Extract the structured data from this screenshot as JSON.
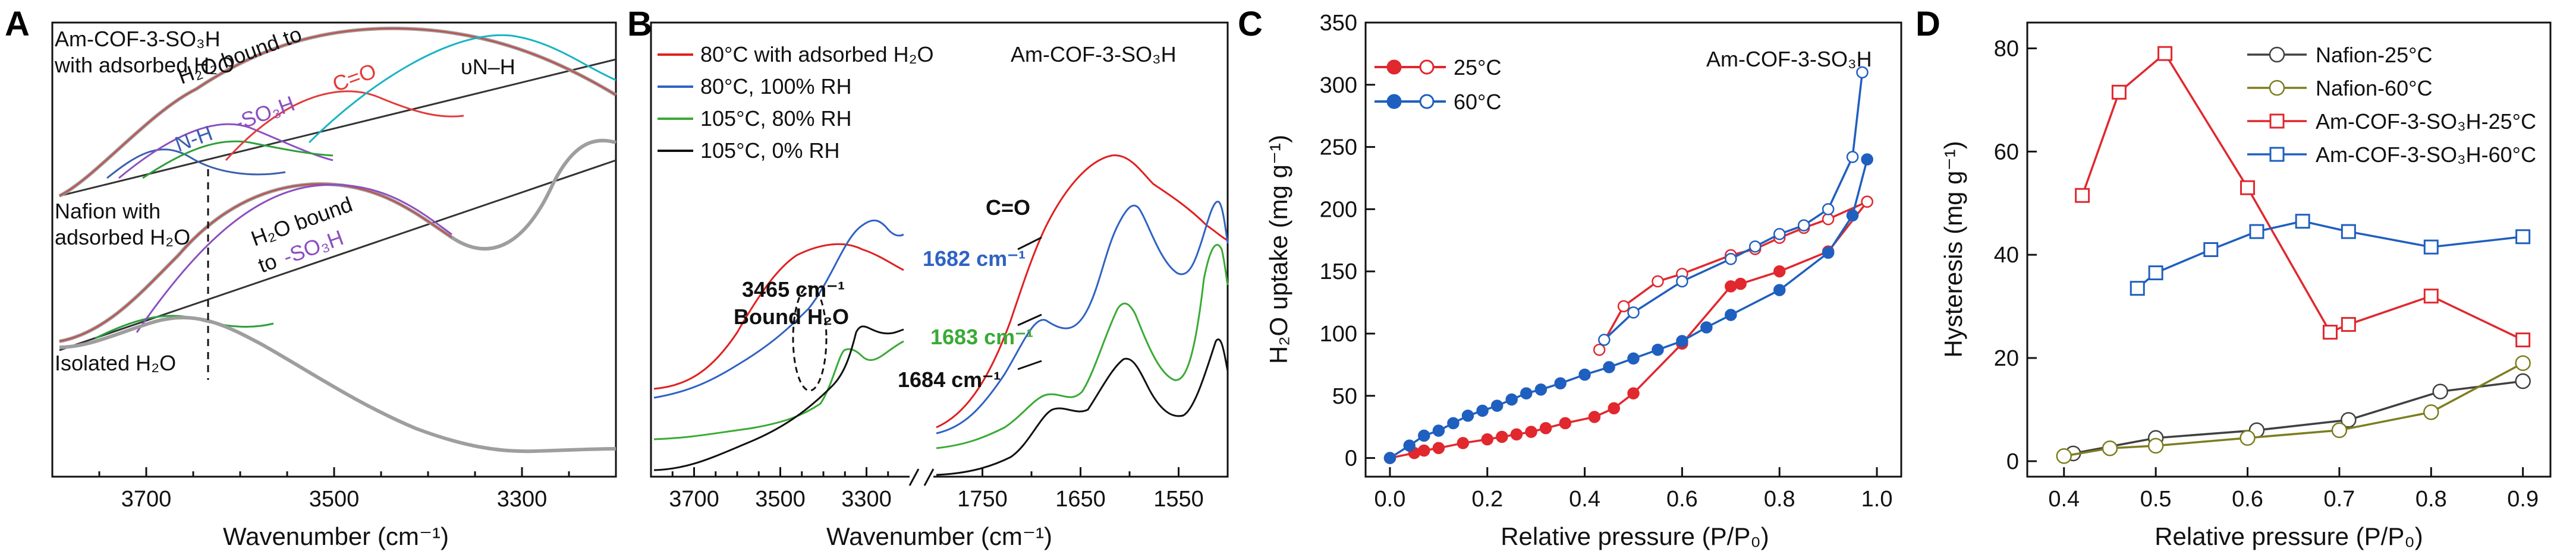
{
  "panels": {
    "A": {
      "letter": "A"
    },
    "B": {
      "letter": "B"
    },
    "C": {
      "letter": "C"
    },
    "D": {
      "letter": "D"
    }
  },
  "chart_data": [
    {
      "id": "A",
      "type": "line",
      "xlabel": "Wavenumber (cm⁻¹)",
      "ylabel": "",
      "xlim": [
        3800,
        3200
      ],
      "x_ticks": [
        3700,
        3500,
        3300
      ],
      "annotations": {
        "top_label_1": "Am-COF-3-SO₃H",
        "top_label_2": "with adsorbed H₂O",
        "top_bound_1": "H₂O bound to",
        "top_nh": "N-H",
        "top_so3h": "-SO₃H",
        "top_co": "C=O",
        "top_vnh": "υN–H",
        "mid_label_1": "Nafion with",
        "mid_label_2": "adsorbed H₂O",
        "mid_bound_1": "H₂O bound",
        "mid_bound_2": "to",
        "mid_so3h": "-SO₃H",
        "bottom_label": "Isolated H₂O"
      },
      "colors": {
        "measured": "#9e9e9e",
        "fit": "#c0504d",
        "nh": "#3a5fb0",
        "so3h": "#8b4fc1",
        "green": "#2e9e3a",
        "co": "#e23b3b",
        "vnh": "#18b4c3",
        "baseline": "#333333"
      }
    },
    {
      "id": "B",
      "type": "line",
      "xlabel": "Wavenumber (cm⁻¹)",
      "title": "Am-COF-3-SO₃H",
      "x_ticks_left": [
        3700,
        3500,
        3300
      ],
      "x_ticks_right": [
        1750,
        1650,
        1550
      ],
      "series": [
        {
          "name": "80°C with adsorbed H₂O",
          "color": "#e02020"
        },
        {
          "name": "80°C, 100% RH",
          "color": "#2f62c4"
        },
        {
          "name": "105°C, 80% RH",
          "color": "#3aaa35"
        },
        {
          "name": "105°C, 0% RH",
          "color": "#111111"
        }
      ],
      "annotations": {
        "bound_1": "3465 cm⁻¹",
        "bound_2": "Bound H₂O",
        "co": "C=O",
        "peak_blue": "1682 cm⁻¹",
        "peak_green": "1683 cm⁻¹",
        "peak_black": "1684 cm⁻¹"
      }
    },
    {
      "id": "C",
      "type": "line",
      "title": "Am-COF-3-SO₃H",
      "xlabel": "Relative pressure (P/P₀)",
      "ylabel": "H₂O uptake (mg g⁻¹)",
      "xlim": [
        -0.05,
        1.05
      ],
      "ylim": [
        -15,
        350
      ],
      "x_ticks": [
        "0.0",
        "0.2",
        "0.4",
        "0.6",
        "0.8",
        "1.0"
      ],
      "y_ticks": [
        "0",
        "50",
        "100",
        "150",
        "200",
        "250",
        "300",
        "350"
      ],
      "legend": [
        "25°C",
        "60°C"
      ],
      "legend_position": "top-left",
      "series": [
        {
          "name": "25°C",
          "branch": "adsorption",
          "color": "#e0282e",
          "filled": true,
          "x": [
            0.0,
            0.05,
            0.07,
            0.1,
            0.15,
            0.2,
            0.23,
            0.26,
            0.29,
            0.32,
            0.36,
            0.42,
            0.46,
            0.5,
            0.6,
            0.7,
            0.72,
            0.8,
            0.9,
            0.98
          ],
          "y": [
            0,
            4,
            6,
            8,
            12,
            15,
            17,
            19,
            21,
            24,
            28,
            33,
            40,
            52,
            92,
            138,
            140,
            150,
            166,
            206
          ]
        },
        {
          "name": "25°C",
          "branch": "desorption",
          "color": "#e0282e",
          "filled": false,
          "x": [
            0.98,
            0.9,
            0.85,
            0.8,
            0.75,
            0.7,
            0.6,
            0.55,
            0.48,
            0.43
          ],
          "y": [
            206,
            192,
            185,
            177,
            168,
            163,
            148,
            142,
            122,
            87
          ]
        },
        {
          "name": "60°C",
          "branch": "adsorption",
          "color": "#1f5fbf",
          "filled": true,
          "x": [
            0.0,
            0.04,
            0.07,
            0.1,
            0.13,
            0.16,
            0.19,
            0.22,
            0.25,
            0.28,
            0.31,
            0.35,
            0.4,
            0.45,
            0.5,
            0.55,
            0.6,
            0.65,
            0.7,
            0.8,
            0.9,
            0.95,
            0.98
          ],
          "y": [
            0,
            10,
            18,
            22,
            28,
            34,
            38,
            42,
            47,
            52,
            55,
            60,
            67,
            73,
            80,
            87,
            94,
            105,
            115,
            135,
            165,
            195,
            240
          ]
        },
        {
          "name": "60°C",
          "branch": "desorption",
          "color": "#1f5fbf",
          "filled": false,
          "x": [
            0.97,
            0.95,
            0.9,
            0.85,
            0.8,
            0.75,
            0.7,
            0.6,
            0.5,
            0.44
          ],
          "y": [
            310,
            242,
            200,
            187,
            180,
            170,
            160,
            142,
            117,
            95
          ]
        }
      ]
    },
    {
      "id": "D",
      "type": "line",
      "xlabel": "Relative pressure (P/P₀)",
      "ylabel": "Hysteresis (mg g⁻¹)",
      "xlim": [
        0.36,
        0.93
      ],
      "ylim": [
        -3,
        85
      ],
      "x_ticks": [
        "0.4",
        "0.5",
        "0.6",
        "0.7",
        "0.8",
        "0.9"
      ],
      "y_ticks": [
        "0",
        "20",
        "40",
        "60",
        "80"
      ],
      "legend_position": "top-right",
      "series": [
        {
          "name": "Nafion-25°C",
          "color": "#404040",
          "marker": "circle",
          "x": [
            0.41,
            0.5,
            0.61,
            0.71,
            0.81,
            0.9
          ],
          "y": [
            1.5,
            4.5,
            6,
            8,
            13.5,
            15.5
          ]
        },
        {
          "name": "Nafion-60°C",
          "color": "#7d7d1f",
          "marker": "circle",
          "x": [
            0.4,
            0.45,
            0.5,
            0.6,
            0.7,
            0.8,
            0.9
          ],
          "y": [
            1,
            2.5,
            3,
            4.5,
            6,
            9.5,
            19
          ]
        },
        {
          "name": "Am-COF-3-SO₃H-25°C",
          "color": "#e0282e",
          "marker": "square",
          "x": [
            0.42,
            0.46,
            0.51,
            0.6,
            0.69,
            0.71,
            0.8,
            0.9
          ],
          "y": [
            51.5,
            71.5,
            79,
            53,
            25,
            26.5,
            32,
            23.5
          ]
        },
        {
          "name": "Am-COF-3-SO₃H-60°C",
          "color": "#1f5fbf",
          "marker": "square",
          "x": [
            0.48,
            0.5,
            0.56,
            0.61,
            0.66,
            0.71,
            0.8,
            0.9
          ],
          "y": [
            33.5,
            36.5,
            41,
            44.5,
            46.5,
            44.5,
            41.5,
            43.5
          ]
        }
      ]
    }
  ]
}
